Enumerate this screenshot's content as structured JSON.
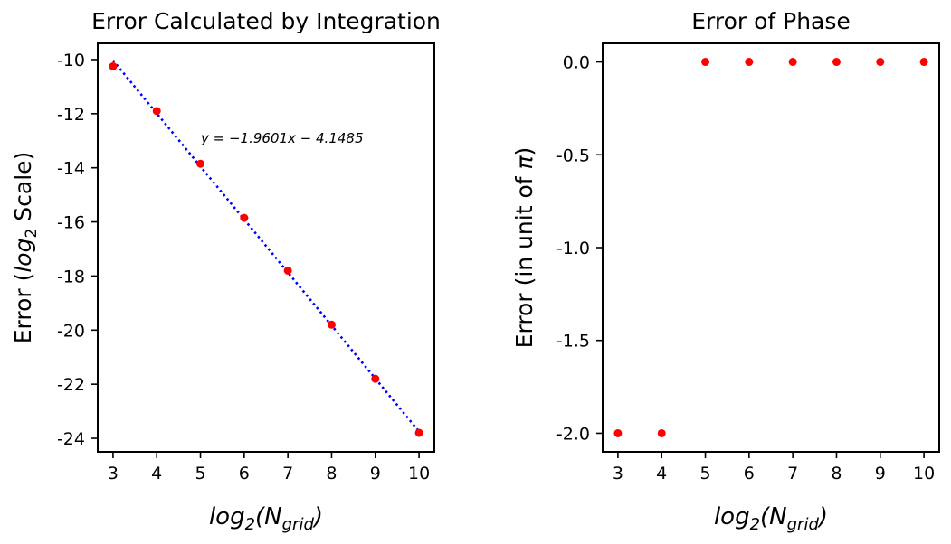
{
  "chart_data": [
    {
      "type": "scatter",
      "title": "Error Calculated by Integration",
      "xlabel_main": "log",
      "xlabel_sub": "2",
      "xlabel_paren": "(N",
      "xlabel_sub2": "grid",
      "xlabel_close": ")",
      "ylabel_pre": "Error (",
      "ylabel_log": "log",
      "ylabel_sub": "2",
      "ylabel_post": " Scale)",
      "xlim": [
        2.65,
        10.35
      ],
      "ylim": [
        -24.5,
        -9.4
      ],
      "xticks": [
        3,
        4,
        5,
        6,
        7,
        8,
        9,
        10
      ],
      "yticks": [
        -10,
        -12,
        -14,
        -16,
        -18,
        -20,
        -22,
        -24
      ],
      "ytick_labels": [
        "-10",
        "-12",
        "-14",
        "-16",
        "-18",
        "-20",
        "-22",
        "-24"
      ],
      "x": [
        3,
        4,
        5,
        6,
        7,
        8,
        9,
        10
      ],
      "y": [
        -10.25,
        -11.9,
        -13.85,
        -15.85,
        -17.8,
        -19.8,
        -21.8,
        -23.8
      ],
      "fit": {
        "slope": -1.9601,
        "intercept": -4.1485,
        "x_range": [
          3,
          10
        ],
        "color": "#0000ff",
        "style": "dotted"
      },
      "annotation": "y = −1.9601x − 4.1485",
      "point_color": "#ff0000",
      "grid": false
    },
    {
      "type": "scatter",
      "title": "Error of Phase",
      "xlabel_main": "log",
      "xlabel_sub": "2",
      "xlabel_paren": "(N",
      "xlabel_sub2": "grid",
      "xlabel_close": ")",
      "ylabel_pre": "Error (in unit of ",
      "ylabel_pi": "π",
      "ylabel_post": ")",
      "xlim": [
        2.65,
        10.35
      ],
      "ylim": [
        -2.1,
        0.1
      ],
      "xticks": [
        3,
        4,
        5,
        6,
        7,
        8,
        9,
        10
      ],
      "yticks": [
        0.0,
        -0.5,
        -1.0,
        -1.5,
        -2.0
      ],
      "ytick_labels": [
        "0.0",
        "-0.5",
        "-1.0",
        "-1.5",
        "-2.0"
      ],
      "x": [
        3,
        4,
        5,
        6,
        7,
        8,
        9,
        10
      ],
      "y": [
        -2.0,
        -2.0,
        0.0,
        0.0,
        0.0,
        0.0,
        0.0,
        0.0
      ],
      "point_color": "#ff0000",
      "grid": false
    }
  ]
}
